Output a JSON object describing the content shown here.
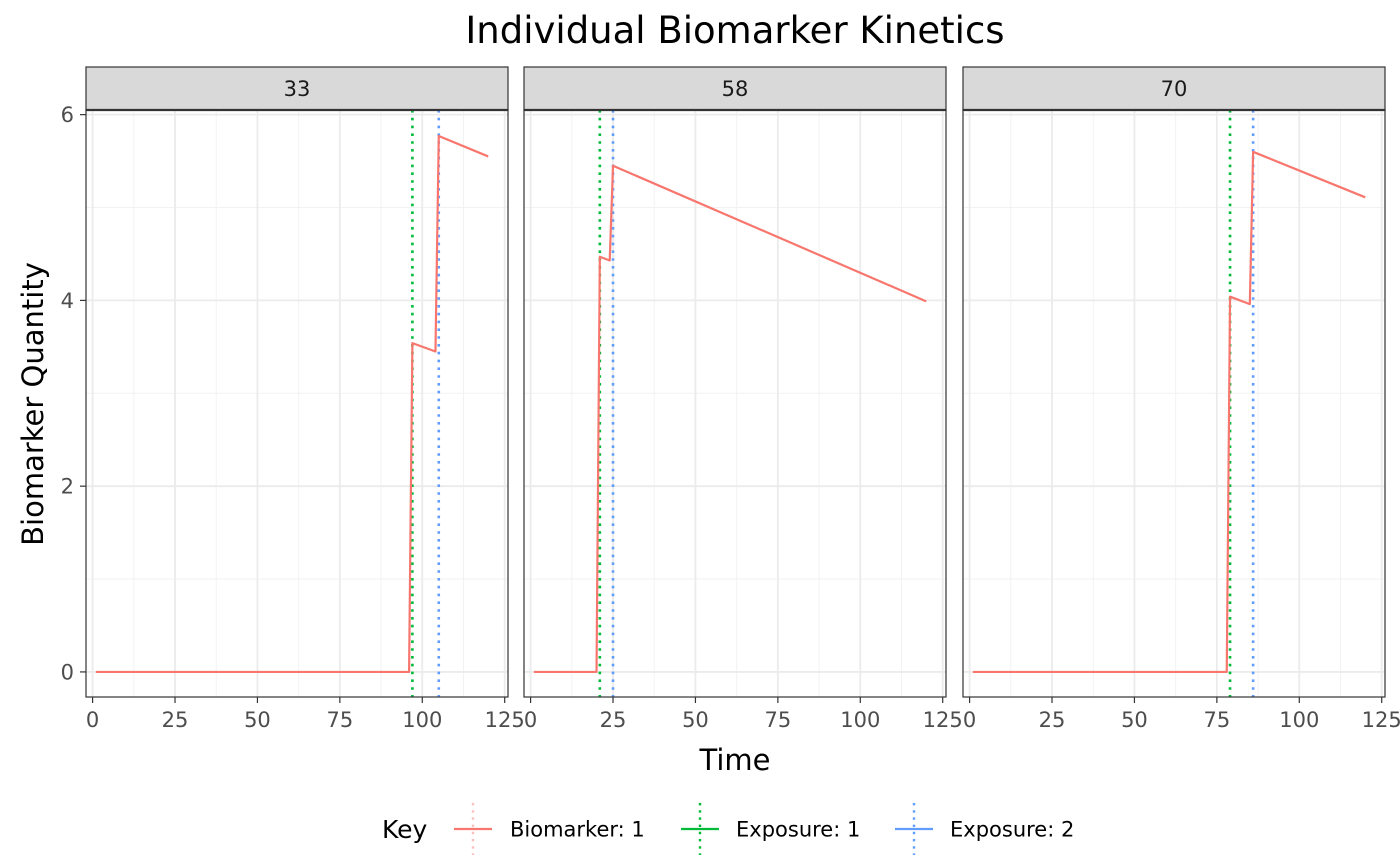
{
  "chart_data": {
    "type": "line",
    "title": "Individual Biomarker Kinetics",
    "xlabel": "Time",
    "ylabel": "Biomarker Quantity",
    "xlim": [
      -2,
      126
    ],
    "ylim": [
      -0.27,
      6.05
    ],
    "x_ticks": [
      0,
      25,
      50,
      75,
      100,
      125
    ],
    "x_tick_labels": [
      "0",
      "25",
      "50",
      "75",
      "100",
      "125"
    ],
    "y_ticks": [
      0,
      2,
      4,
      6
    ],
    "y_tick_labels": [
      "0",
      "2",
      "4",
      "6"
    ],
    "grid": true,
    "legend": {
      "title": "Key",
      "position": "bottom",
      "entries": [
        {
          "label": "Biomarker: 1",
          "color": "#F8766D",
          "style": "solid"
        },
        {
          "label": "Exposure: 1",
          "color": "#00BA38",
          "style": "dotted"
        },
        {
          "label": "Exposure: 2",
          "color": "#619CFF",
          "style": "dotted"
        }
      ]
    },
    "panels": [
      {
        "label": "33",
        "series": [
          {
            "name": "Biomarker: 1",
            "points": [
              [
                1,
                0
              ],
              [
                96,
                0
              ],
              [
                97,
                3.54
              ],
              [
                104,
                3.45
              ],
              [
                105,
                5.77
              ],
              [
                120,
                5.55
              ]
            ]
          }
        ],
        "exposures": [
          {
            "name": "Exposure: 1",
            "x": 97
          },
          {
            "name": "Exposure: 2",
            "x": 105
          }
        ]
      },
      {
        "label": "58",
        "series": [
          {
            "name": "Biomarker: 1",
            "points": [
              [
                1,
                0
              ],
              [
                20,
                0
              ],
              [
                21,
                4.47
              ],
              [
                24,
                4.43
              ],
              [
                25,
                5.45
              ],
              [
                120,
                3.99
              ]
            ]
          }
        ],
        "exposures": [
          {
            "name": "Exposure: 1",
            "x": 21
          },
          {
            "name": "Exposure: 2",
            "x": 25
          }
        ]
      },
      {
        "label": "70",
        "series": [
          {
            "name": "Biomarker: 1",
            "points": [
              [
                1,
                0
              ],
              [
                78,
                0
              ],
              [
                79,
                4.04
              ],
              [
                85,
                3.96
              ],
              [
                86,
                5.6
              ],
              [
                120,
                5.11
              ]
            ]
          }
        ],
        "exposures": [
          {
            "name": "Exposure: 1",
            "x": 79
          },
          {
            "name": "Exposure: 2",
            "x": 86
          }
        ]
      }
    ]
  }
}
